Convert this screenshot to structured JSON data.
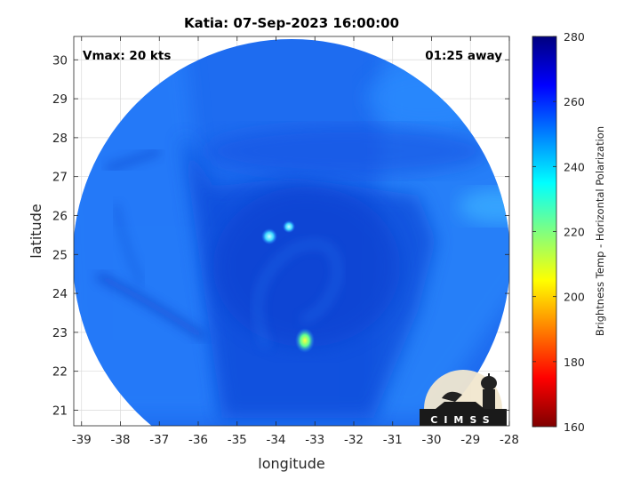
{
  "title": "Katia: 07-Sep-2023 16:00:00",
  "vmax_label": "Vmax: 20 kts",
  "time_label": "01:25 away",
  "xlabel": "longitude",
  "ylabel": "latitude",
  "x_ticks": [
    "-39",
    "-38",
    "-37",
    "-36",
    "-35",
    "-34",
    "-33",
    "-32",
    "-31",
    "-30",
    "-29",
    "-28"
  ],
  "y_ticks": [
    "30",
    "29",
    "28",
    "27",
    "26",
    "25",
    "24",
    "23",
    "22",
    "21"
  ],
  "colorbar": {
    "label": "Brightness Temp - Horizontal Polarization",
    "ticks": [
      "280",
      "260",
      "240",
      "220",
      "200",
      "180",
      "160"
    ],
    "range": [
      160,
      280
    ],
    "colors": [
      "#7f0000",
      "#ff0000",
      "#ff8000",
      "#ffff00",
      "#80ff80",
      "#00ffff",
      "#0080ff",
      "#0000ff",
      "#00007f"
    ]
  },
  "logo_text": "CIMSS",
  "chart_data": {
    "type": "heatmap",
    "title": "Katia: 07-Sep-2023 16:00:00",
    "xlabel": "longitude",
    "ylabel": "latitude",
    "xlim": [
      -39.2,
      -28
    ],
    "ylim": [
      20.6,
      30.6
    ],
    "grid": true,
    "colorbar_label": "Brightness Temp - Horizontal Polarization",
    "colorbar_range": [
      160,
      280
    ],
    "annotations": [
      "Vmax: 20 kts",
      "01:25 away"
    ],
    "features": [
      {
        "lon": -34.0,
        "lat": 25.5,
        "value": 238
      },
      {
        "lon": -33.6,
        "lat": 25.7,
        "value": 242
      },
      {
        "lon": -33.2,
        "lat": 22.7,
        "value": 212
      }
    ]
  }
}
